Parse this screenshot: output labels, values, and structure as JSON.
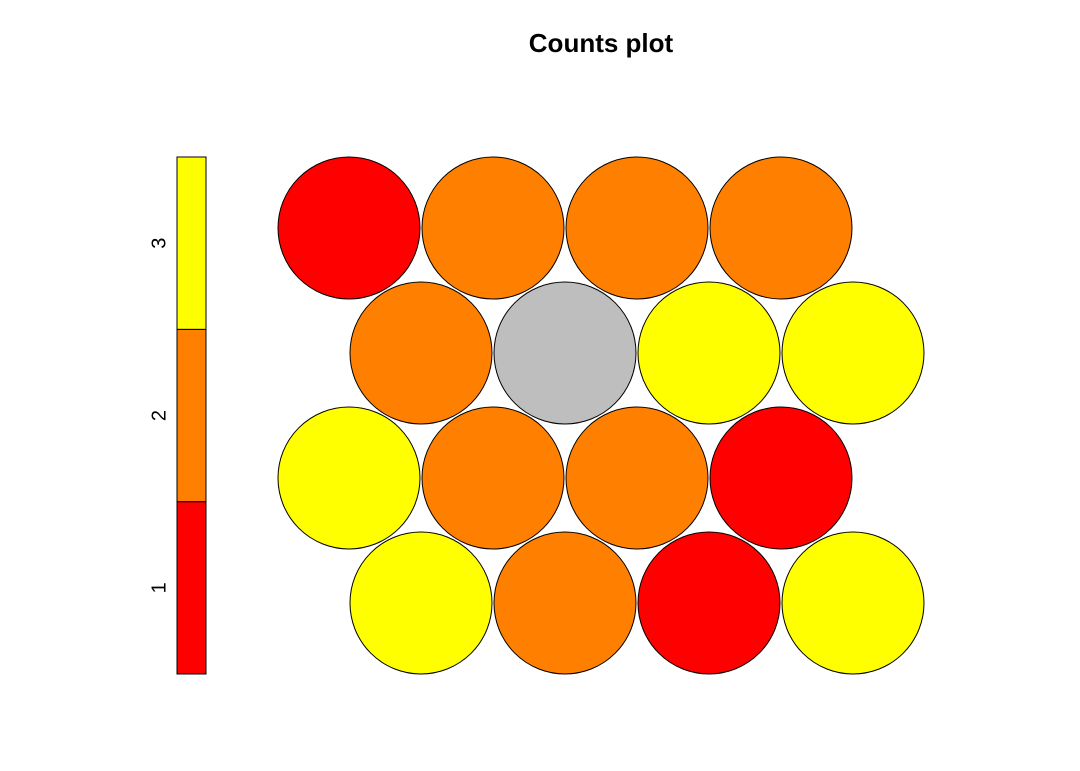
{
  "chart_data": {
    "type": "hexagonal-counts-map",
    "title": "Counts plot",
    "grid": {
      "rows": 4,
      "columns": 4,
      "topology": "hexagonal"
    },
    "legend": {
      "placement": "left",
      "ticks": [
        "1",
        "2",
        "3"
      ],
      "entries": [
        {
          "value": 1,
          "color": "#FF0000"
        },
        {
          "value": 2,
          "color": "#FF8000"
        },
        {
          "value": 3,
          "color": "#FFFF00"
        }
      ]
    },
    "empty_color": "#BEBEBE",
    "units": [
      [
        1,
        2,
        2,
        2
      ],
      [
        2,
        0,
        3,
        3
      ],
      [
        3,
        2,
        2,
        1
      ],
      [
        3,
        2,
        1,
        3
      ]
    ]
  }
}
